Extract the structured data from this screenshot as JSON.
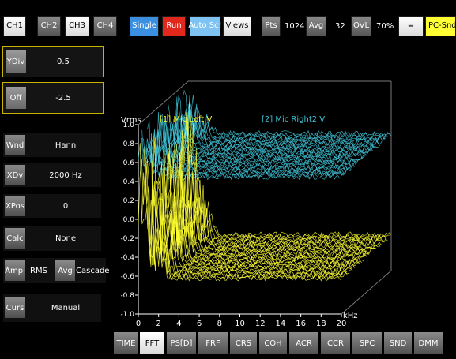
{
  "toolbar": {
    "ch1": "CH1",
    "ch2": "CH2",
    "ch3": "CH3",
    "ch4": "CH4",
    "single": "Single",
    "run": "Run",
    "auto_scale": "Auto Sc!",
    "views": "Views",
    "pts_label": "Pts",
    "pts_value": "1024",
    "avg_label": "Avg",
    "avg_value": "32",
    "ovl_label": "OVL",
    "ovl_value": "70%",
    "equals": "=",
    "source": "PC-Snd"
  },
  "left_panel": {
    "ydiv_label": "YDiv",
    "ydiv_value": "0.5",
    "off_label": "Off",
    "off_value": "-2.5",
    "wnd_label": "Wnd",
    "wnd_value": "Hann",
    "xdiv_label": "XDv",
    "xdiv_value": "2000 Hz",
    "xpos_label": "XPos",
    "xpos_value": "0",
    "calc_label": "Calc",
    "calc_value": "None",
    "ampl_label": "Ampl",
    "ampl_value": "RMS",
    "avg_label": "Avg",
    "avg_value": "Cascade",
    "curs_label": "Curs",
    "curs_value": "Manual"
  },
  "bottom_tabs": [
    "TIME",
    "FFT",
    "PS[D]",
    "FRF",
    "CRS",
    "COH",
    "ACR",
    "CCR",
    "SPC",
    "SND",
    "DMM"
  ],
  "colors": {
    "trace_yellow": "#ffff33",
    "trace_cyan": "#3fc4d8",
    "grid": "#777777",
    "active_outline": "#c8b400"
  },
  "chart_data": {
    "type": "line",
    "style": "3d-cascade-waterfall",
    "y_unit": "Vrms",
    "x_unit": "kHz",
    "x_ticks": [
      "0",
      "2",
      "4",
      "6",
      "8",
      "10",
      "12",
      "14",
      "16",
      "18",
      "20"
    ],
    "y_ticks": [
      "1.0",
      "0.8",
      "0.6",
      "0.4",
      "0.2",
      "0.0",
      "-0.2",
      "-0.4",
      "-0.6",
      "-0.8",
      "-1.0"
    ],
    "xlim": [
      0,
      20
    ],
    "ylim": [
      -1.0,
      1.0
    ],
    "grid": false,
    "series": [
      {
        "name": "[1] Mic Left V",
        "color": "#ffff33",
        "noise_floor": -0.62,
        "peak_region_khz": [
          0,
          3
        ],
        "peak_max": 0.95
      },
      {
        "name": "[2] Mic Right2 V",
        "color": "#3fc4d8",
        "noise_floor": 0.45,
        "peak_region_khz": [
          0,
          3
        ],
        "peak_max": 1.0
      }
    ]
  }
}
